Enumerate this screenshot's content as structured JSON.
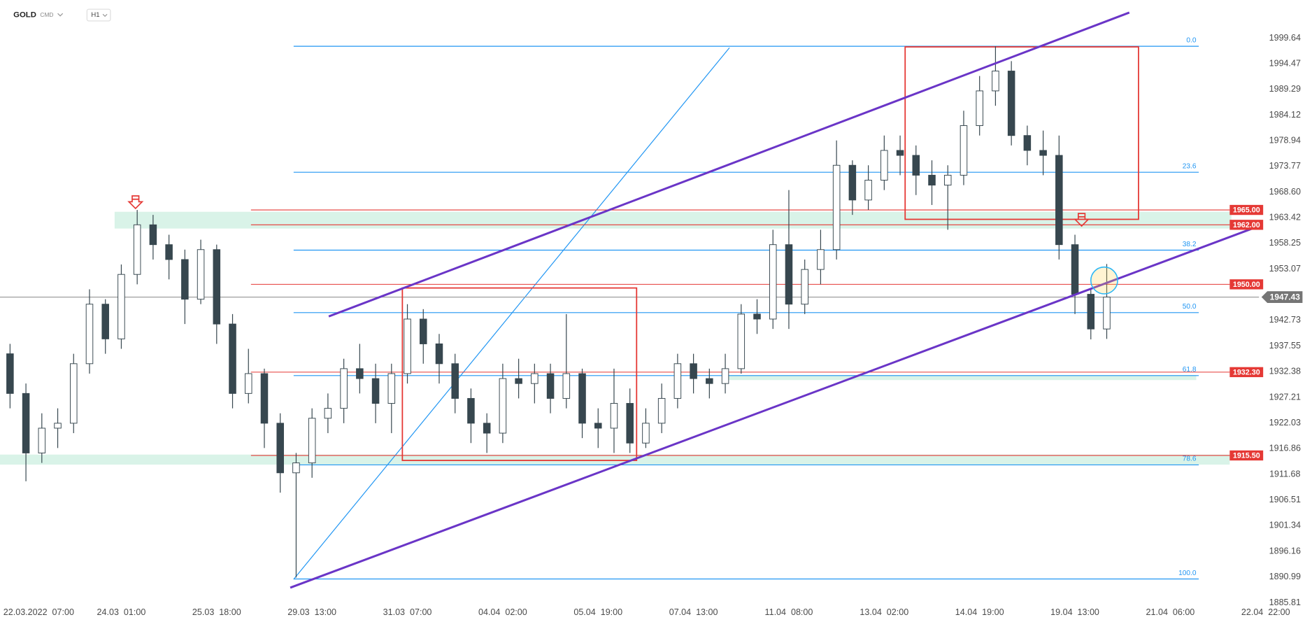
{
  "header": {
    "symbol": "GOLD",
    "market": "CMD",
    "interval": "H1"
  },
  "chart_data": {
    "type": "candlestick",
    "x": [
      -1,
      0,
      1,
      2,
      3,
      4,
      5,
      6,
      7,
      8,
      9,
      10,
      11,
      12,
      13,
      14,
      15,
      16,
      17,
      18,
      19,
      20,
      21,
      22,
      23,
      24,
      25,
      26,
      27,
      28,
      29,
      30,
      31,
      32,
      33,
      34,
      35,
      36,
      37,
      38,
      39,
      40,
      41,
      42,
      43,
      44,
      45,
      46,
      47,
      48,
      49,
      50,
      51,
      52,
      53,
      54,
      55,
      56,
      57,
      58,
      59,
      60,
      61,
      62,
      63,
      64,
      65,
      66,
      67,
      68
    ],
    "open": [
      1936,
      1928,
      1916,
      1921,
      1922,
      1934,
      1946,
      1939,
      1952,
      1962,
      1958,
      1955,
      1947,
      1957,
      1942,
      1928,
      1932,
      1922,
      1912,
      1914,
      1923,
      1925,
      1933,
      1931,
      1926,
      1932,
      1943,
      1938,
      1934,
      1927,
      1922,
      1920,
      1931,
      1930,
      1932,
      1927,
      1932,
      1922,
      1921,
      1926,
      1918,
      1922,
      1927,
      1934,
      1931,
      1930,
      1933,
      1944,
      1943,
      1958,
      1946,
      1953,
      1957,
      1974,
      1967,
      1971,
      1977,
      1976,
      1972,
      1970,
      1972,
      1982,
      1989,
      1993,
      1980,
      1977,
      1976,
      1958,
      1948,
      1941
    ],
    "high": [
      1938,
      1930,
      1924,
      1925,
      1936,
      1949,
      1947,
      1954,
      1965,
      1964,
      1960,
      1957,
      1959,
      1958,
      1944,
      1937,
      1933,
      1924,
      1916,
      1925,
      1928,
      1935,
      1938,
      1934,
      1934,
      1946,
      1945,
      1940,
      1936,
      1929,
      1924,
      1934,
      1935,
      1934,
      1934,
      1944,
      1933,
      1925,
      1933,
      1929,
      1925,
      1930,
      1936,
      1936,
      1933,
      1936,
      1946,
      1947,
      1961,
      1969,
      1955,
      1961,
      1979,
      1975,
      1974,
      1980,
      1980,
      1978,
      1975,
      1974,
      1985,
      1992,
      1998,
      1995,
      1982,
      1981,
      1980,
      1960,
      1949,
      1954.1
    ],
    "low": [
      1925,
      1910.3,
      1914,
      1917,
      1920,
      1932,
      1936,
      1937,
      1950,
      1955,
      1951,
      1942,
      1946,
      1938,
      1925,
      1926,
      1917,
      1908,
      1890.9,
      1911,
      1920,
      1922,
      1928,
      1922,
      1920,
      1930,
      1934,
      1930,
      1924,
      1918,
      1916,
      1918,
      1927,
      1926,
      1924,
      1925,
      1919,
      1917,
      1916,
      1916,
      1917,
      1920,
      1925,
      1928,
      1927,
      1928,
      1932,
      1940,
      1941,
      1941,
      1944,
      1950,
      1955,
      1964,
      1965,
      1969,
      1972,
      1968,
      1966,
      1961,
      1970,
      1980,
      1986,
      1978,
      1974,
      1972,
      1955,
      1944,
      1938.9,
      1939
    ],
    "close": [
      1928,
      1916,
      1921,
      1922,
      1934,
      1946,
      1939,
      1952,
      1962,
      1958,
      1955,
      1947,
      1957,
      1942,
      1928,
      1932,
      1922,
      1912,
      1914,
      1923,
      1925,
      1933,
      1931,
      1926,
      1932,
      1943,
      1938,
      1934,
      1927,
      1922,
      1920,
      1931,
      1930,
      1932,
      1927,
      1932,
      1922,
      1921,
      1926,
      1918,
      1922,
      1927,
      1934,
      1931,
      1930,
      1933,
      1944,
      1943,
      1958,
      1946,
      1953,
      1957,
      1974,
      1967,
      1971,
      1977,
      1976,
      1972,
      1970,
      1972,
      1982,
      1989,
      1993,
      1980,
      1977,
      1976,
      1958,
      1948,
      1941,
      1947.43
    ],
    "up_color": "#ffffff",
    "down_color": "#37474f",
    "wick_color": "#37474f",
    "xlim": [
      -1.6316,
      80.4737
    ],
    "xticks": [
      {
        "value": 0,
        "label": "22.03.2022  07:00"
      },
      {
        "value": 6,
        "label": "24.03  01:00"
      },
      {
        "value": 12,
        "label": "25.03  18:00"
      },
      {
        "value": 18,
        "label": "29.03  13:00"
      },
      {
        "value": 24,
        "label": "31.03  07:00"
      },
      {
        "value": 30,
        "label": "04.04  02:00"
      },
      {
        "value": 36,
        "label": "05.04  19:00"
      },
      {
        "value": 42,
        "label": "07.04  13:00"
      },
      {
        "value": 48,
        "label": "11.04  08:00"
      },
      {
        "value": 54,
        "label": "13.04  02:00"
      },
      {
        "value": 60,
        "label": "14.04  19:00"
      },
      {
        "value": 66,
        "label": "19.04  13:00"
      },
      {
        "value": 72,
        "label": "21.04  06:00"
      },
      {
        "value": 78,
        "label": "22.04  22:00"
      }
    ],
    "ylim": [
      1885.13,
      2002.26
    ],
    "yticks": [
      1999.64,
      1994.47,
      1989.29,
      1984.12,
      1978.94,
      1973.77,
      {
        "value": 1968.6,
        "label": "1968.60"
      },
      1963.42,
      1958.25,
      1953.07,
      1942.73,
      1937.55,
      1932.38,
      1927.21,
      1922.03,
      1916.86,
      1911.68,
      1906.51,
      1901.34,
      1896.16,
      1890.99,
      1885.81
    ],
    "grid": false,
    "levels": [
      {
        "value": 1965,
        "label": "1965.00"
      },
      {
        "value": 1962,
        "label": "1962.00"
      },
      {
        "value": 1950,
        "label": "1950.00"
      },
      {
        "value": 1932.3,
        "label": "1932.30"
      },
      {
        "value": 1915.5,
        "label": "1915.50"
      }
    ],
    "level_color": "#e53935",
    "fib_levels": [
      {
        "label": "0.0",
        "value": 1998
      },
      {
        "label": "23.6",
        "value": 1972.6
      },
      {
        "label": "38.2",
        "value": 1956.9
      },
      {
        "label": "50.0",
        "value": 1944.3
      },
      {
        "label": "61.8",
        "value": 1931.6
      },
      {
        "label": "78.6",
        "value": 1913.6
      },
      {
        "label": "100.0",
        "value": 1890.6
      }
    ],
    "fib_color": "#2196f3",
    "last_price": 1947.43
  }
}
